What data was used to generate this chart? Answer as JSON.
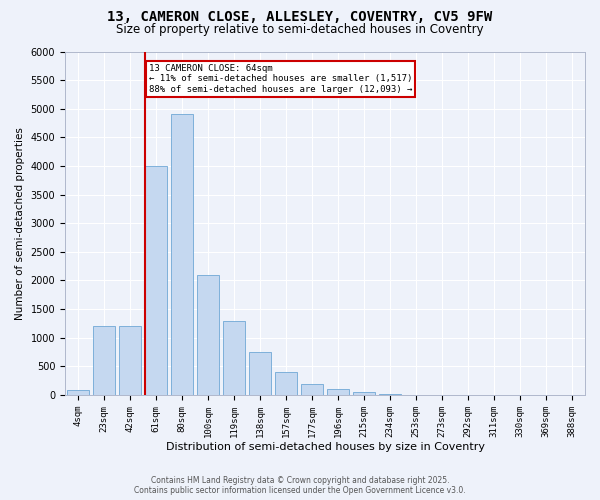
{
  "title_line1": "13, CAMERON CLOSE, ALLESLEY, COVENTRY, CV5 9FW",
  "title_line2": "Size of property relative to semi-detached houses in Coventry",
  "xlabel": "Distribution of semi-detached houses by size in Coventry",
  "ylabel": "Number of semi-detached properties",
  "categories": [
    "4sqm",
    "23sqm",
    "42sqm",
    "61sqm",
    "80sqm",
    "100sqm",
    "119sqm",
    "138sqm",
    "157sqm",
    "177sqm",
    "196sqm",
    "215sqm",
    "234sqm",
    "253sqm",
    "273sqm",
    "292sqm",
    "311sqm",
    "330sqm",
    "369sqm",
    "388sqm"
  ],
  "values": [
    80,
    1200,
    1200,
    4000,
    4900,
    2100,
    1300,
    750,
    400,
    200,
    100,
    50,
    20,
    8,
    3,
    2,
    1,
    0,
    0,
    0
  ],
  "bar_color": "#c5d8f0",
  "bar_edge_color": "#6fa8d6",
  "vline_color": "#cc0000",
  "vline_x_index": 3,
  "annotation_text": "13 CAMERON CLOSE: 64sqm\n← 11% of semi-detached houses are smaller (1,517)\n88% of semi-detached houses are larger (12,093) →",
  "annotation_box_facecolor": "white",
  "annotation_box_edgecolor": "#cc0000",
  "background_color": "#eef2fa",
  "grid_color": "#ffffff",
  "footer_line1": "Contains HM Land Registry data © Crown copyright and database right 2025.",
  "footer_line2": "Contains public sector information licensed under the Open Government Licence v3.0.",
  "ylim": [
    0,
    6000
  ],
  "yticks": [
    0,
    500,
    1000,
    1500,
    2000,
    2500,
    3000,
    3500,
    4000,
    4500,
    5000,
    5500,
    6000
  ]
}
